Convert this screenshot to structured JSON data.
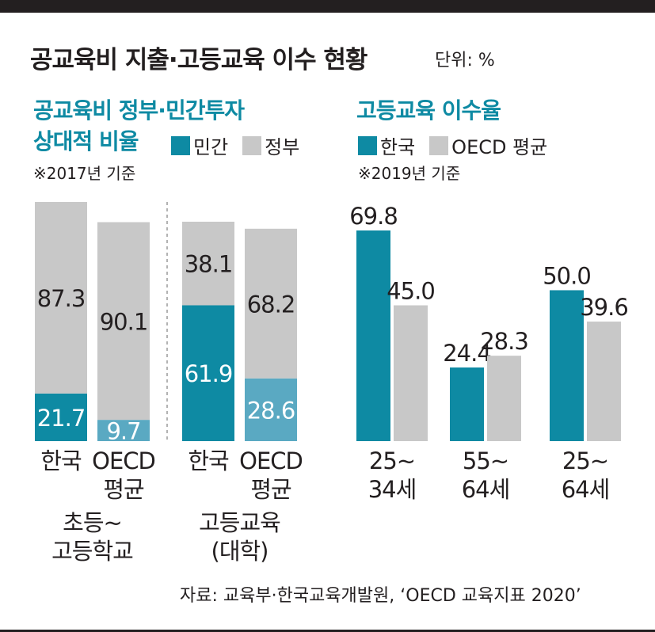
{
  "header": {
    "title": "공교육비 지출·고등교육 이수 현황",
    "unit": "단위: %"
  },
  "left_panel": {
    "title_line1": "공교육비 정부·민간투자",
    "title_line2": "상대적 비율",
    "note": "※2017년 기준"
  },
  "right_panel": {
    "title": "고등교육 이수율",
    "note": "※2019년 기준"
  },
  "source": "자료: 교육부·한국교육개발원, ‘OECD 교육지표 2020’",
  "colors": {
    "korea": "#0e8aa3",
    "oecd_private": "#5aa9c2",
    "government": "#c8c8c8",
    "text": "#231f20"
  },
  "chart_data": [
    {
      "type": "bar",
      "stacked": true,
      "legend": [
        "민간",
        "정부"
      ],
      "groups": [
        {
          "label_lines": [
            "초등~",
            "고등학교"
          ],
          "bars": [
            {
              "label_lines": [
                "한국"
              ],
              "private": 21.7,
              "government": 87.3
            },
            {
              "label_lines": [
                "OECD",
                "평균"
              ],
              "private": 9.7,
              "government": 90.1
            }
          ]
        },
        {
          "label_lines": [
            "고등교육",
            "(대학)"
          ],
          "bars": [
            {
              "label_lines": [
                "한국"
              ],
              "private": 61.9,
              "government": 38.1
            },
            {
              "label_lines": [
                "OECD",
                "평균"
              ],
              "private": 28.6,
              "government": 68.2
            }
          ]
        }
      ]
    },
    {
      "type": "bar",
      "legend": [
        "한국",
        "OECD 평균"
      ],
      "categories": [
        [
          "25~",
          "34세"
        ],
        [
          "55~",
          "64세"
        ],
        [
          "25~",
          "64세"
        ]
      ],
      "series": [
        {
          "name": "한국",
          "values": [
            69.8,
            24.4,
            50.0
          ]
        },
        {
          "name": "OECD 평균",
          "values": [
            45.0,
            28.3,
            39.6
          ]
        }
      ],
      "value_labels": [
        [
          "69.8",
          "45.0"
        ],
        [
          "24.4",
          "28.3"
        ],
        [
          "50.0",
          "39.6"
        ]
      ]
    }
  ]
}
